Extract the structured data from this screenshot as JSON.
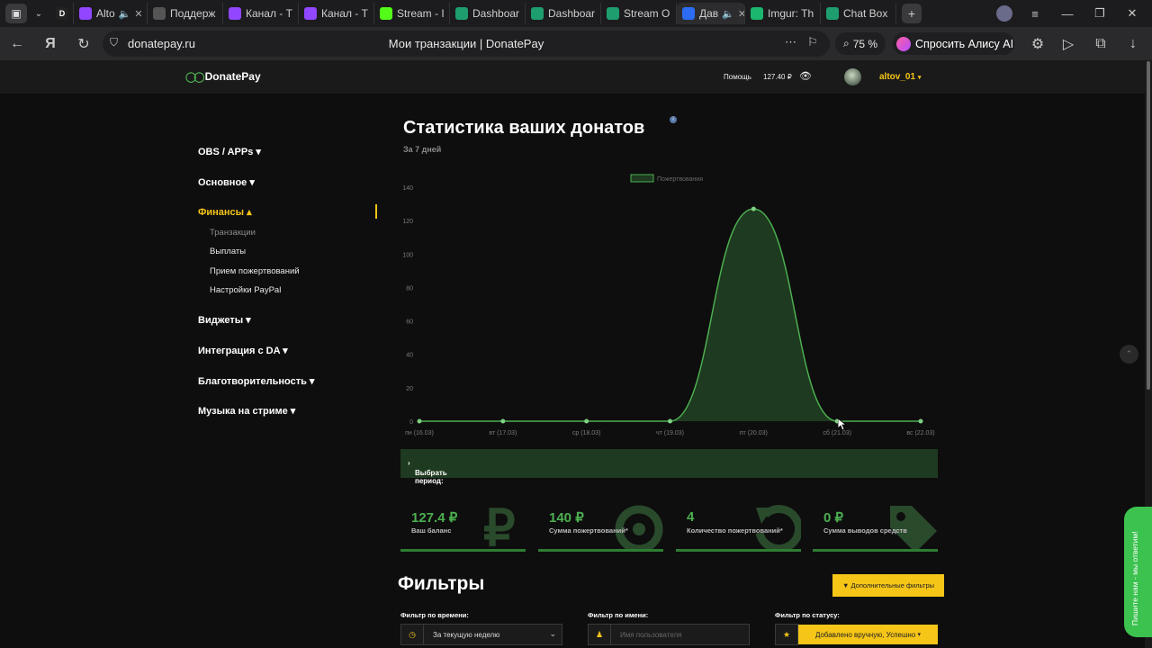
{
  "browser": {
    "tabs": [
      {
        "label": "D",
        "color": "#222222"
      },
      {
        "label": "Alto",
        "color": "#9146ff",
        "icon": "twitch-icon",
        "sound": true
      },
      {
        "label": "Поддерж",
        "color": "#555555",
        "icon": "image-icon"
      },
      {
        "label": "Канал - Т",
        "color": "#9146ff",
        "icon": "twitch-icon"
      },
      {
        "label": "Канал - Т",
        "color": "#9146ff",
        "icon": "twitch-icon"
      },
      {
        "label": "Stream - I",
        "color": "#53fc18",
        "icon": "kick-icon"
      },
      {
        "label": "Dashboar",
        "color": "#1e9e6e",
        "icon": "streamlabs-icon"
      },
      {
        "label": "Dashboar",
        "color": "#1e9e6e",
        "icon": "streamlabs-icon"
      },
      {
        "label": "Stream O",
        "color": "#1e9e6e",
        "icon": "streamlabs-icon"
      },
      {
        "label": "Дав",
        "color": "#2b6cf2",
        "icon": "donatepay-icon",
        "active": true,
        "sound": true
      },
      {
        "label": "Imgur: Th",
        "color": "#1bb76e",
        "icon": "imgur-icon"
      },
      {
        "label": "Chat Box",
        "color": "#1e9e6e",
        "icon": "streamlabs-icon"
      }
    ],
    "url": "donatepay.ru",
    "page_title": "Мои транзакции | DonatePay",
    "zoom": "75 %",
    "alice_label": "Спросить Алису AI"
  },
  "header": {
    "logo": "DonatePay",
    "help": "Помощь",
    "balance": "127.40 ₽",
    "username": "altov_01"
  },
  "sidebar": {
    "sections": [
      {
        "label": "OBS / APPs ▾"
      },
      {
        "label": "Основное ▾"
      },
      {
        "label": "Финансы ▴",
        "active": true
      },
      {
        "label": "Виджеты ▾"
      },
      {
        "label": "Интеграция с DA ▾"
      },
      {
        "label": "Благотворительность ▾"
      },
      {
        "label": "Музыка на стриме ▾"
      }
    ],
    "finance_items": [
      "Транзакции",
      "Выплаты",
      "Прием пожертвований",
      "Настройки PayPal"
    ]
  },
  "stats": {
    "title": "Статистика ваших донатов",
    "subtitle": "За 7 дней",
    "period_label": "Выбрать период:"
  },
  "chart_data": {
    "type": "area",
    "series": [
      {
        "name": "Пожертвования",
        "values": [
          0,
          0,
          0,
          0,
          127,
          0,
          0
        ]
      }
    ],
    "categories": [
      "пн (16.03)",
      "вт (17.03)",
      "ср (18.03)",
      "чт (19.03)",
      "пт (20.03)",
      "сб (21.03)",
      "вс (22.03)"
    ],
    "yticks": [
      0,
      20,
      40,
      60,
      80,
      100,
      120,
      140
    ],
    "ylim": [
      0,
      140
    ],
    "legend": "top",
    "color": "#4caf50"
  },
  "cards": [
    {
      "value": "127.4 ₽",
      "label": "Ваш баланс",
      "icon": "ruble-icon"
    },
    {
      "value": "140 ₽",
      "label": "Сумма пожертвований*",
      "icon": "target-icon"
    },
    {
      "value": "4",
      "label": "Количество пожертвований*",
      "icon": "refresh-icon"
    },
    {
      "value": "0 ₽",
      "label": "Сумма выводов средств",
      "icon": "tag-icon"
    }
  ],
  "filters": {
    "title": "Фильтры",
    "more_button": "▼ Дополнительные фильтры",
    "time_label": "Фильтр по времени:",
    "time_value": "За текущую неделю",
    "name_label": "Фильтр по имени:",
    "name_placeholder": "Имя пользователя",
    "status_label": "Фильтр по статусу:",
    "status_value": "Добавлено вручную, Успешно"
  },
  "chat_widget": "Пишите нам - мы ответим!"
}
